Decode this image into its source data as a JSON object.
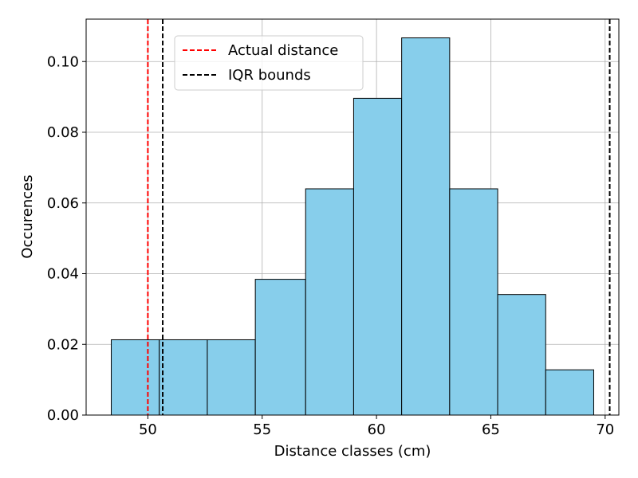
{
  "chart_data": {
    "type": "bar",
    "title": "",
    "xlabel": "Distance classes (cm)",
    "ylabel": "Occurences",
    "xlim": [
      47.3,
      70.6
    ],
    "ylim": [
      0,
      0.112
    ],
    "xticks": [
      50,
      55,
      60,
      65,
      70
    ],
    "yticks": [
      0.0,
      0.02,
      0.04,
      0.06,
      0.08,
      0.1
    ],
    "xtick_labels": [
      "50",
      "55",
      "60",
      "65",
      "70"
    ],
    "ytick_labels": [
      "0.00",
      "0.02",
      "0.04",
      "0.06",
      "0.08",
      "0.10"
    ],
    "grid": true,
    "bar_color": "#87ceeb",
    "bar_edge_color": "#000000",
    "bins": [
      {
        "x0": 48.4,
        "x1": 50.5,
        "value": 0.0213
      },
      {
        "x0": 50.5,
        "x1": 52.6,
        "value": 0.0213
      },
      {
        "x0": 52.6,
        "x1": 54.7,
        "value": 0.0213
      },
      {
        "x0": 54.7,
        "x1": 56.9,
        "value": 0.0384
      },
      {
        "x0": 56.9,
        "x1": 59.0,
        "value": 0.064
      },
      {
        "x0": 59.0,
        "x1": 61.1,
        "value": 0.0896
      },
      {
        "x0": 61.1,
        "x1": 63.2,
        "value": 0.1067
      },
      {
        "x0": 63.2,
        "x1": 65.3,
        "value": 0.064
      },
      {
        "x0": 65.3,
        "x1": 67.4,
        "value": 0.0341
      },
      {
        "x0": 67.4,
        "x1": 69.5,
        "value": 0.0128
      }
    ],
    "vlines": [
      {
        "x": 50.0,
        "color": "#ff0000",
        "style": "dashed",
        "series": 0
      },
      {
        "x": 50.65,
        "color": "#000000",
        "style": "dashed",
        "series": 1
      },
      {
        "x": 70.2,
        "color": "#000000",
        "style": "dashed",
        "series": 1
      }
    ],
    "legend": {
      "placement": "top-left",
      "entries": [
        {
          "label": "Actual distance",
          "color": "#ff0000",
          "style": "dashed"
        },
        {
          "label": "IQR bounds",
          "color": "#000000",
          "style": "dashed"
        }
      ]
    }
  }
}
